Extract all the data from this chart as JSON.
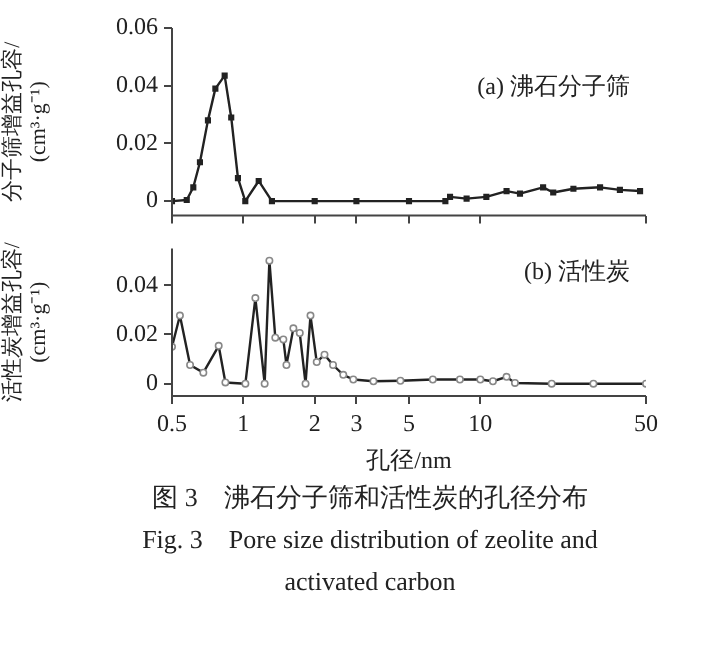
{
  "chart_data": [
    {
      "type": "line",
      "ylabel": "分子筛增益孔容/(cm³·g⁻¹)",
      "annotations": [
        "(a) 沸石分子筛"
      ],
      "xlim": [
        0.5,
        50
      ],
      "xticks": [
        0.5,
        1,
        2,
        3,
        5,
        10,
        50
      ],
      "ylim": [
        -0.005,
        0.06
      ],
      "yticks": [
        0,
        0.02,
        0.04,
        0.06
      ],
      "log": "x",
      "tick_labels": "y",
      "grid": false,
      "legend": false,
      "marker": "square",
      "series": [
        {
          "color": "#222222",
          "x": [
            0.5,
            0.577,
            0.615,
            0.656,
            0.709,
            0.762,
            0.834,
            0.889,
            0.949,
            1.019,
            1.161,
            1.32,
            2,
            3,
            5,
            7.12,
            7.45,
            8.75,
            10.6,
            12.9,
            14.7,
            18.4,
            20.3,
            24.7,
            32,
            38.8,
            47.2
          ],
          "values": [
            0,
            0.0004,
            0.0048,
            0.0135,
            0.028,
            0.039,
            0.0435,
            0.029,
            0.008,
            0,
            0.007,
            0,
            0,
            0,
            0,
            0,
            0.0015,
            0.0009,
            0.0015,
            0.0035,
            0.0026,
            0.0048,
            0.003,
            0.0043,
            0.0048,
            0.0039,
            0.0035
          ]
        }
      ]
    },
    {
      "type": "line",
      "ylabel": "活性炭增益孔容/(cm³·g⁻¹)",
      "xlabel": "孔径/nm",
      "annotations": [
        "(b) 活性炭",
        "图 3　沸石分子筛和活性炭的孔径分布",
        "Fig. 3　Pore size distribution of zeolite and activated carbon"
      ],
      "xlim": [
        0.5,
        50
      ],
      "xticks": [
        0.5,
        1,
        2,
        3,
        5,
        10,
        50
      ],
      "ylim": [
        -0.005,
        0.055
      ],
      "yticks": [
        0,
        0.02,
        0.04
      ],
      "log": "x",
      "grid": false,
      "legend": false,
      "marker": "circle",
      "series": [
        {
          "color": "#222222",
          "x": [
            0.5,
            0.54,
            0.596,
            0.678,
            0.787,
            0.84,
            1.02,
            1.124,
            1.23,
            1.288,
            1.364,
            1.475,
            1.52,
            1.626,
            1.73,
            1.83,
            1.92,
            2.04,
            2.2,
            2.39,
            2.64,
            2.91,
            3.54,
            4.6,
            6.3,
            8.2,
            10,
            11.3,
            12.9,
            14,
            20,
            30,
            50
          ],
          "values": [
            0.015,
            0.0277,
            0.0076,
            0.0045,
            0.0154,
            0.0005,
            0,
            0.0348,
            0,
            0.05,
            0.0187,
            0.018,
            0.0076,
            0.0225,
            0.0206,
            0,
            0.0277,
            0.0088,
            0.0118,
            0.0076,
            0.0036,
            0.0017,
            0.001,
            0.0012,
            0.0017,
            0.0017,
            0.0017,
            0.001,
            0.0028,
            0.0003,
            0,
            0,
            0
          ]
        }
      ]
    }
  ]
}
